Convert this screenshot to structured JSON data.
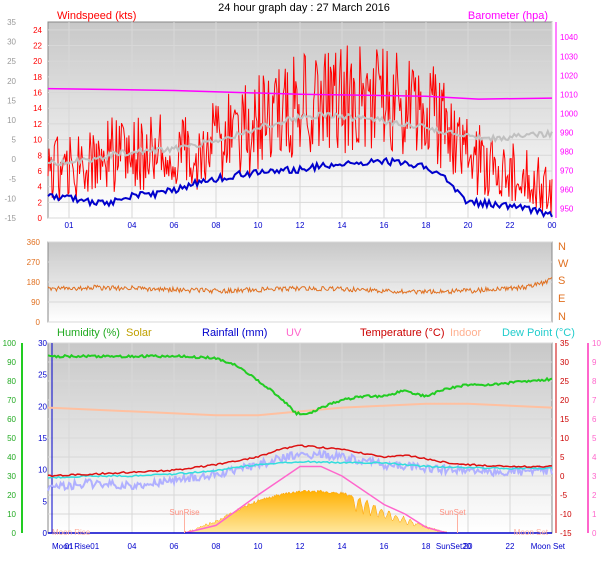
{
  "title": "24 hour graph day : 27 March 2016",
  "colors": {
    "wind_speed": "#ff0000",
    "wind_avg": "#c0c0c0",
    "gust_line": "#0000cc",
    "barometer": "#ff00ff",
    "direction": "#e07020",
    "humidity": "#22cc22",
    "solar": "#ffc000",
    "rainfall": "#0000cc",
    "uv": "#ff66cc",
    "temperature": "#dd1111",
    "indoor": "#ffc0a0",
    "dew_point": "#33dddd",
    "apparent": "#b0b0ff"
  },
  "top_panel": {
    "left_label": "Windspeed (kts)",
    "right_label": "Barometer (hpa)",
    "outer_ticks": [
      "35",
      "30",
      "25",
      "20",
      "15",
      "10",
      "5",
      "0",
      "-5",
      "-10",
      "-15"
    ],
    "left_ticks": [
      "24",
      "22",
      "20",
      "18",
      "16",
      "14",
      "12",
      "10",
      "8",
      "6",
      "4",
      "2",
      "0"
    ],
    "right_ticks": [
      "1040",
      "1030",
      "1020",
      "1010",
      "1000",
      "990",
      "980",
      "970",
      "960",
      "950"
    ],
    "x_ticks": [
      "01",
      "04",
      "06",
      "08",
      "10",
      "12",
      "14",
      "16",
      "18",
      "20",
      "22",
      "00"
    ]
  },
  "mid_panel": {
    "ticks": [
      "360",
      "270",
      "180",
      "90",
      "0"
    ],
    "compass": [
      "N",
      "W",
      "S",
      "E",
      "N"
    ]
  },
  "bottom_panel": {
    "legend": {
      "humidity": "Humidity (%)",
      "solar": "Solar",
      "rainfall": "Rainfall (mm)",
      "uv": "UV",
      "temperature": "Temperature (°C)",
      "indoor": "Indoor",
      "dew_point": "Dew Point (°C)"
    },
    "humidity_ticks": [
      "100",
      "90",
      "80",
      "70",
      "60",
      "50",
      "40",
      "30",
      "20",
      "10",
      "0"
    ],
    "rain_ticks": [
      "30",
      "25",
      "20",
      "15",
      "10",
      "5",
      "0"
    ],
    "temp_ticks": [
      "35",
      "30",
      "25",
      "20",
      "15",
      "10",
      "5",
      "0",
      "-5",
      "-10",
      "-15"
    ],
    "uv_ticks": [
      "10",
      "9",
      "8",
      "7",
      "6",
      "5",
      "4",
      "3",
      "2",
      "1",
      "0"
    ],
    "x_ticks": [
      "01",
      "04",
      "06",
      "08",
      "10",
      "12",
      "14",
      "16",
      "18",
      "20",
      "22"
    ],
    "events": {
      "moon_rise": "Moon Rise",
      "sun_rise": "SunRise",
      "sun_set": "SunSet",
      "moon_set": "Moon Set",
      "axis_moon_rise": "Moon Rise01",
      "axis_sun_set": "SunSet20",
      "axis_moon_set": "Moon Set"
    }
  },
  "chart_data": [
    {
      "type": "line",
      "title": "24 hour graph day : 27 March 2016",
      "x_unit": "hour",
      "xlim": [
        0,
        24
      ],
      "series": [
        {
          "name": "Windspeed (kts)",
          "axis": "left",
          "x": [
            0,
            1,
            2,
            3,
            4,
            5,
            6,
            7,
            8,
            9,
            10,
            11,
            12,
            13,
            14,
            15,
            16,
            17,
            18,
            19,
            20,
            21,
            22,
            23,
            24
          ],
          "values": [
            6,
            6.5,
            7,
            8,
            8.5,
            8.5,
            8,
            8.5,
            10,
            10.5,
            12,
            13,
            14.5,
            15,
            15.5,
            16,
            15.5,
            15,
            14,
            11,
            8,
            7,
            6,
            5,
            3
          ]
        },
        {
          "axis": "left",
          "x": [
            0,
            1,
            2,
            3,
            4,
            5,
            6,
            7,
            8,
            9,
            10,
            11,
            12,
            13,
            14,
            15,
            16,
            17,
            18,
            19,
            20,
            21,
            22,
            23,
            24
          ],
          "values": [
            7,
            7.2,
            7.5,
            8,
            8.5,
            8.6,
            8.8,
            9.2,
            10,
            10.6,
            11.6,
            12.2,
            12.8,
            13.1,
            13,
            12.6,
            12.4,
            12,
            11.6,
            11,
            10.4,
            10.1,
            10.3,
            10.6,
            10.7
          ]
        },
        {
          "axis": "left",
          "x": [
            0,
            1,
            2,
            3,
            4,
            5,
            6,
            7,
            8,
            9,
            10,
            11,
            12,
            13,
            14,
            15,
            16,
            17,
            18,
            19,
            20,
            21,
            22,
            23,
            24
          ],
          "values": [
            3,
            2.5,
            2,
            2,
            2.8,
            3,
            3.5,
            4.5,
            5,
            5.5,
            5.8,
            6,
            6.2,
            6.6,
            6.8,
            7,
            7.2,
            7,
            6.6,
            5,
            2,
            1.8,
            1.5,
            1,
            0.5
          ]
        },
        {
          "name": "Barometer (hpa)",
          "axis": "right",
          "x": [
            0,
            6,
            12,
            18,
            20.5,
            24
          ],
          "values": [
            1013,
            1012,
            1010,
            1009,
            1007.5,
            1008
          ]
        }
      ],
      "left_ylim": [
        0,
        25
      ],
      "outer_ylim": [
        -15,
        35
      ],
      "right_ylim": [
        945,
        1048
      ]
    },
    {
      "type": "line",
      "x_unit": "hour",
      "xlim": [
        0,
        24
      ],
      "ylim": [
        0,
        360
      ],
      "series": [
        {
          "x": [
            0,
            2,
            4,
            6,
            8,
            10,
            12,
            14,
            16,
            18,
            20,
            22,
            23,
            24
          ],
          "values": [
            150,
            155,
            152,
            145,
            140,
            145,
            150,
            148,
            140,
            135,
            140,
            150,
            160,
            190
          ]
        }
      ]
    },
    {
      "type": "line",
      "x_unit": "hour",
      "xlim": [
        0,
        24
      ],
      "series": [
        {
          "name": "Humidity (%)",
          "axis": "humidity",
          "x": [
            0,
            5,
            6.5,
            8,
            9,
            10,
            11,
            11.8,
            12.5,
            13,
            14,
            15,
            16,
            17,
            17.5,
            18,
            19,
            20,
            21,
            22,
            24
          ],
          "values": [
            93,
            93,
            93,
            92,
            88,
            80,
            72,
            63,
            63,
            66,
            70,
            72,
            72,
            75,
            73,
            72,
            76,
            78,
            78,
            79,
            81
          ]
        },
        {
          "name": "Temperature (°C)",
          "axis": "temp",
          "x": [
            0,
            2,
            4,
            6,
            8,
            10,
            11,
            12,
            13,
            14,
            15,
            16,
            17,
            18,
            19,
            20,
            22,
            24
          ],
          "values": [
            0,
            0.5,
            1,
            1.5,
            3,
            5,
            7,
            8,
            7.5,
            7,
            6,
            5,
            5.5,
            4.5,
            3.5,
            3,
            2.5,
            2.5
          ]
        },
        {
          "name": "Dew Point (°C)",
          "axis": "temp",
          "x": [
            0,
            2,
            4,
            6,
            8,
            10,
            12,
            14,
            16,
            18,
            20,
            22,
            24
          ],
          "values": [
            -0.5,
            0,
            0,
            0.5,
            1.5,
            3,
            3.8,
            3.5,
            3.5,
            2.5,
            2.2,
            2,
            2
          ]
        },
        {
          "name": "Indoor",
          "axis": "temp",
          "x": [
            0,
            4,
            8,
            10,
            12,
            14,
            18,
            20,
            24
          ],
          "values": [
            18,
            17,
            16,
            16,
            17,
            18,
            19,
            19,
            18
          ]
        },
        {
          "axis": "temp",
          "x": [
            0,
            2,
            4,
            6,
            8,
            10,
            12,
            14,
            16,
            18,
            20,
            22,
            24
          ],
          "values": [
            -3,
            -2,
            -2.5,
            -1,
            0.5,
            3,
            6,
            5,
            3,
            2,
            1.5,
            1,
            1.5
          ]
        },
        {
          "name": "Solar",
          "axis": "humidity",
          "x": [
            6.5,
            7,
            8,
            9,
            10,
            11,
            12,
            13,
            14,
            15,
            16,
            17,
            18,
            19
          ],
          "values": [
            0,
            2,
            6,
            12,
            17,
            20,
            22,
            22,
            21,
            18,
            12,
            8,
            3,
            0
          ]
        },
        {
          "name": "UV",
          "axis": "uv",
          "x": [
            6.5,
            8,
            10,
            12,
            13,
            14,
            16,
            17,
            18,
            19
          ],
          "values": [
            0,
            0.4,
            2,
            3.5,
            3.5,
            3,
            1.5,
            1,
            0.3,
            0
          ]
        },
        {
          "name": "Rainfall (mm)",
          "axis": "rain",
          "x": [
            0,
            24
          ],
          "values": [
            0,
            0
          ]
        }
      ],
      "humidity_ylim": [
        0,
        100
      ],
      "rain_ylim": [
        0,
        30
      ],
      "temp_ylim": [
        -15,
        35
      ],
      "uv_ylim": [
        0,
        10
      ],
      "events": {
        "moon_rise": 0,
        "sun_rise": 6.5,
        "sun_set": 19.5,
        "moon_set": 24
      }
    }
  ]
}
